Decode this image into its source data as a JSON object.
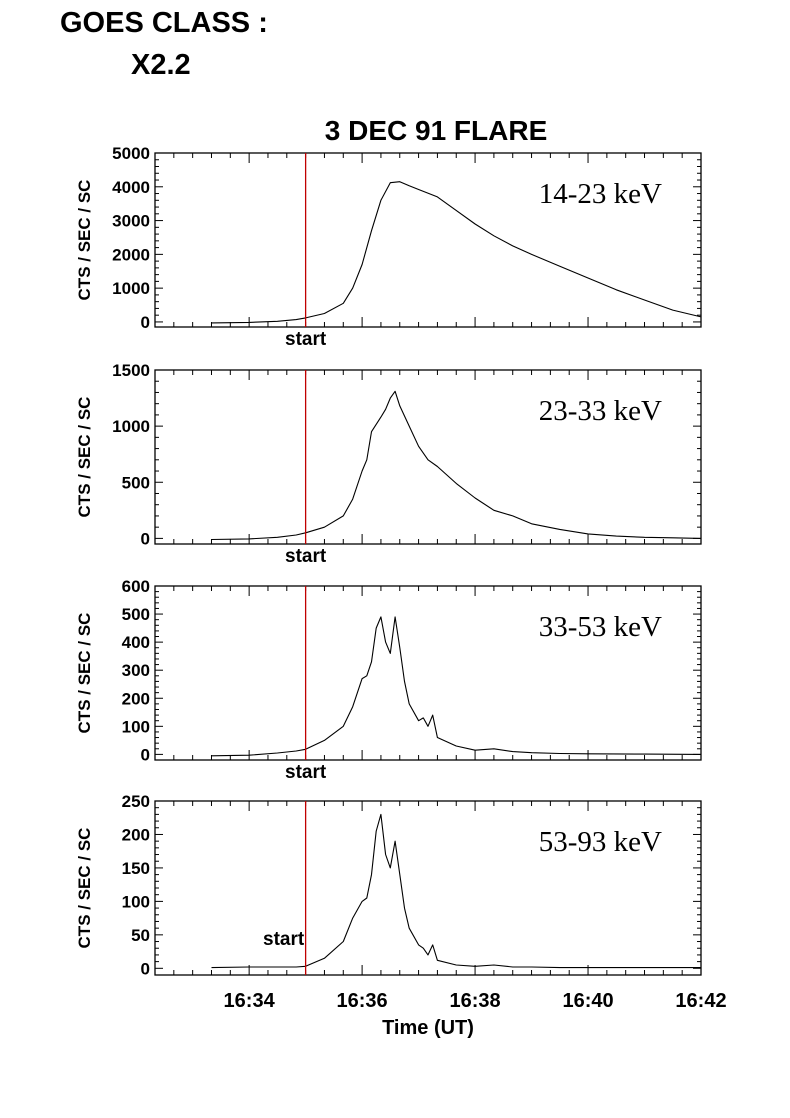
{
  "header": {
    "goes_line1": "GOES CLASS :",
    "goes_line2": "X2.2"
  },
  "chart_data": {
    "type": "line",
    "title": "3 DEC 91 FLARE",
    "xlabel": "Time (UT)",
    "ylabel": "CTS / SEC / SC",
    "x_ticks": [
      "16:34",
      "16:36",
      "16:38",
      "16:40",
      "16:42"
    ],
    "xlim": [
      "16:32:20",
      "16:42:00"
    ],
    "start_time": "16:35:00",
    "start_label": "start",
    "marker_color": "#c00000",
    "grid": false,
    "panels": [
      {
        "name": "14-23 keV",
        "ylim": [
          -150,
          5000
        ],
        "yticks": [
          0,
          1000,
          2000,
          3000,
          4000,
          5000
        ],
        "x": [
          "16:33:20",
          "16:34:00",
          "16:34:30",
          "16:34:50",
          "16:35:00",
          "16:35:20",
          "16:35:40",
          "16:35:50",
          "16:36:00",
          "16:36:10",
          "16:36:20",
          "16:36:30",
          "16:36:40",
          "16:36:50",
          "16:37:00",
          "16:37:20",
          "16:37:40",
          "16:38:00",
          "16:38:20",
          "16:38:40",
          "16:39:00",
          "16:39:30",
          "16:40:00",
          "16:40:30",
          "16:41:00",
          "16:41:30",
          "16:42:00"
        ],
        "y": [
          -30,
          -15,
          20,
          70,
          120,
          250,
          550,
          1000,
          1700,
          2700,
          3600,
          4120,
          4150,
          4030,
          3920,
          3700,
          3300,
          2900,
          2550,
          2250,
          2000,
          1650,
          1300,
          950,
          650,
          350,
          150
        ]
      },
      {
        "name": "23-33 keV",
        "ylim": [
          -50,
          1500
        ],
        "yticks": [
          0,
          500,
          1000,
          1500
        ],
        "x": [
          "16:33:20",
          "16:34:00",
          "16:34:30",
          "16:34:50",
          "16:35:00",
          "16:35:20",
          "16:35:40",
          "16:35:50",
          "16:36:00",
          "16:36:05",
          "16:36:10",
          "16:36:20",
          "16:36:25",
          "16:36:30",
          "16:36:35",
          "16:36:40",
          "16:36:50",
          "16:37:00",
          "16:37:10",
          "16:37:20",
          "16:37:40",
          "16:38:00",
          "16:38:20",
          "16:38:40",
          "16:39:00",
          "16:39:30",
          "16:40:00",
          "16:40:30",
          "16:41:00",
          "16:41:30",
          "16:42:00"
        ],
        "y": [
          -10,
          -5,
          10,
          30,
          50,
          100,
          200,
          350,
          600,
          700,
          950,
          1080,
          1150,
          1250,
          1310,
          1180,
          1000,
          820,
          700,
          640,
          490,
          360,
          250,
          200,
          130,
          80,
          40,
          20,
          10,
          5,
          0
        ]
      },
      {
        "name": "33-53 keV",
        "ylim": [
          -20,
          600
        ],
        "yticks": [
          0,
          100,
          200,
          300,
          400,
          500,
          600
        ],
        "x": [
          "16:33:20",
          "16:34:00",
          "16:34:30",
          "16:34:50",
          "16:35:00",
          "16:35:20",
          "16:35:40",
          "16:35:50",
          "16:36:00",
          "16:36:05",
          "16:36:10",
          "16:36:15",
          "16:36:20",
          "16:36:25",
          "16:36:30",
          "16:36:35",
          "16:36:40",
          "16:36:45",
          "16:36:50",
          "16:37:00",
          "16:37:05",
          "16:37:10",
          "16:37:15",
          "16:37:20",
          "16:37:40",
          "16:38:00",
          "16:38:20",
          "16:38:40",
          "16:39:00",
          "16:39:30",
          "16:40:00",
          "16:41:00",
          "16:42:00"
        ],
        "y": [
          -5,
          -3,
          5,
          12,
          18,
          50,
          100,
          170,
          270,
          280,
          330,
          450,
          490,
          400,
          360,
          490,
          380,
          260,
          180,
          120,
          130,
          100,
          140,
          60,
          30,
          15,
          20,
          10,
          6,
          3,
          2,
          1,
          0
        ]
      },
      {
        "name": "53-93 keV",
        "ylim": [
          -10,
          250
        ],
        "yticks": [
          0,
          50,
          100,
          150,
          200,
          250
        ],
        "x": [
          "16:33:20",
          "16:34:00",
          "16:34:30",
          "16:34:50",
          "16:35:00",
          "16:35:20",
          "16:35:40",
          "16:35:50",
          "16:36:00",
          "16:36:05",
          "16:36:10",
          "16:36:15",
          "16:36:20",
          "16:36:25",
          "16:36:30",
          "16:36:35",
          "16:36:40",
          "16:36:45",
          "16:36:50",
          "16:37:00",
          "16:37:05",
          "16:37:10",
          "16:37:15",
          "16:37:20",
          "16:37:40",
          "16:38:00",
          "16:38:20",
          "16:38:40",
          "16:39:00",
          "16:39:30",
          "16:40:00",
          "16:41:00",
          "16:42:00"
        ],
        "y": [
          1,
          2,
          2,
          2,
          3,
          15,
          40,
          75,
          100,
          105,
          140,
          205,
          230,
          170,
          150,
          190,
          140,
          90,
          60,
          35,
          30,
          20,
          35,
          12,
          5,
          3,
          5,
          2,
          2,
          1,
          1,
          1,
          1
        ]
      }
    ]
  }
}
